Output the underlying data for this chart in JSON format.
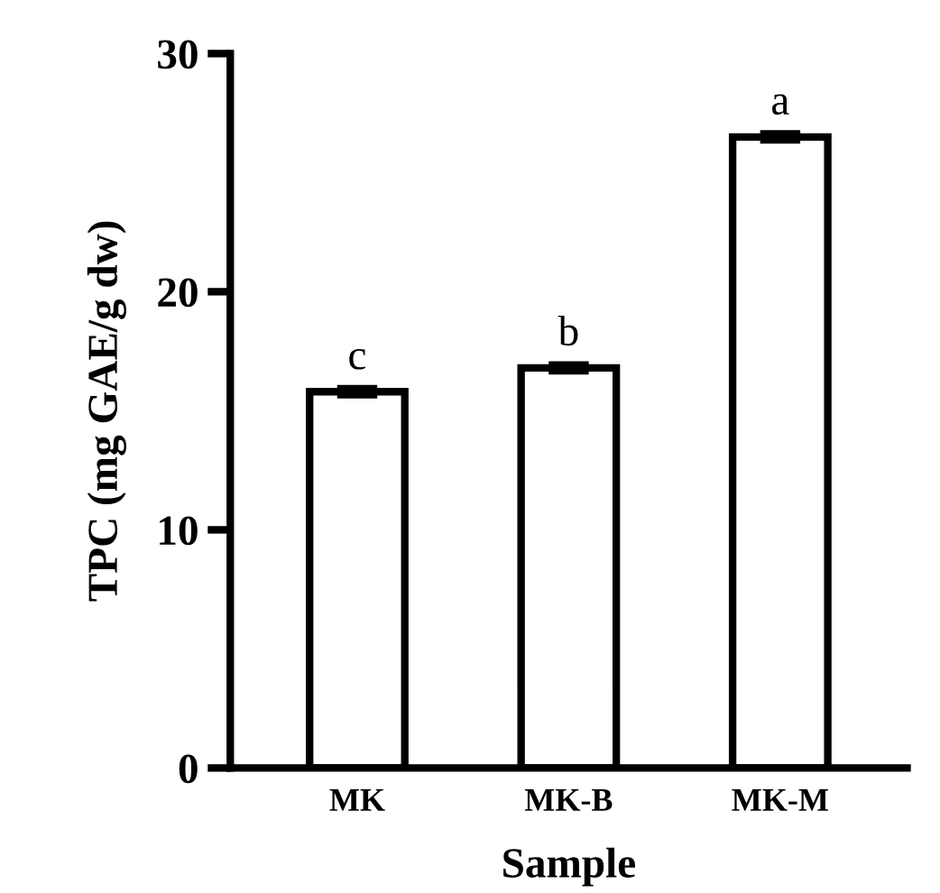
{
  "chart_data": {
    "type": "bar",
    "xlabel": "Sample",
    "ylabel": "TPC (mg GAE/g dw)",
    "categories": [
      "MK",
      "MK-B",
      "MK-M"
    ],
    "values": [
      15.8,
      16.8,
      26.5
    ],
    "errors": [
      0.15,
      0.15,
      0.15
    ],
    "color": "#ffffff",
    "ylim": [
      0,
      30
    ],
    "yticks": [
      0,
      10,
      20,
      30
    ],
    "grid": false,
    "value_labels": [
      "c",
      "b",
      "a"
    ]
  }
}
